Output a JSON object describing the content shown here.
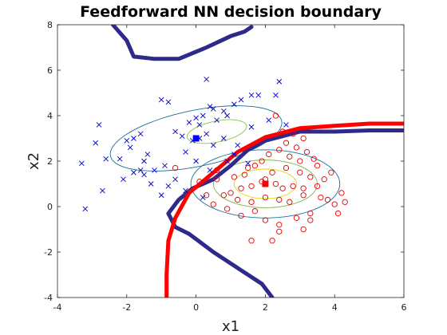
{
  "chart_data": {
    "type": "scatter",
    "title": "Feedforward NN decision boundary",
    "xlabel": "x1",
    "ylabel": "x2",
    "xlim": [
      -4,
      6
    ],
    "ylim": [
      -4,
      8
    ],
    "xticks": [
      "-4",
      "-2",
      "0",
      "2",
      "4",
      "6"
    ],
    "yticks": [
      "-4",
      "-2",
      "0",
      "2",
      "4",
      "6",
      "8"
    ],
    "grid": false,
    "legend": "none",
    "series": [
      {
        "marker": "x",
        "color": "#0000cc",
        "points": [
          [
            0.3,
            5.6
          ],
          [
            1.3,
            4.7
          ],
          [
            2.4,
            5.5
          ],
          [
            1.6,
            4.9
          ],
          [
            1.8,
            4.9
          ],
          [
            2.3,
            4.9
          ],
          [
            1.1,
            4.5
          ],
          [
            0.8,
            4.2
          ],
          [
            0.5,
            4.3
          ],
          [
            0.2,
            4.0
          ],
          [
            0.0,
            3.9
          ],
          [
            0.6,
            3.8
          ],
          [
            -0.2,
            3.7
          ],
          [
            0.1,
            3.6
          ],
          [
            0.4,
            4.4
          ],
          [
            0.9,
            4.0
          ],
          [
            -1.0,
            4.7
          ],
          [
            -0.8,
            4.6
          ],
          [
            1.6,
            3.5
          ],
          [
            2.1,
            3.8
          ],
          [
            2.6,
            3.6
          ],
          [
            0.3,
            3.2
          ],
          [
            0.1,
            3.0
          ],
          [
            -0.1,
            2.9
          ],
          [
            0.5,
            2.7
          ],
          [
            -0.4,
            3.1
          ],
          [
            -0.6,
            3.3
          ],
          [
            0.8,
            3.0
          ],
          [
            1.2,
            2.7
          ],
          [
            1.1,
            2.3
          ],
          [
            -1.6,
            3.2
          ],
          [
            -1.8,
            3.0
          ],
          [
            -1.9,
            2.6
          ],
          [
            -2.0,
            2.9
          ],
          [
            -1.4,
            2.3
          ],
          [
            -1.5,
            2.0
          ],
          [
            -2.2,
            2.1
          ],
          [
            -1.8,
            1.5
          ],
          [
            -1.5,
            1.4
          ],
          [
            -1.6,
            1.6
          ],
          [
            -2.1,
            1.2
          ],
          [
            -2.6,
            2.1
          ],
          [
            -1.2,
            1.6
          ],
          [
            -0.9,
            1.8
          ],
          [
            -1.3,
            1.0
          ],
          [
            -0.8,
            0.9
          ],
          [
            -0.3,
            0.7
          ],
          [
            -0.6,
            1.2
          ],
          [
            -2.9,
            2.8
          ],
          [
            -2.8,
            3.6
          ],
          [
            -2.7,
            0.7
          ],
          [
            -3.3,
            1.9
          ],
          [
            -3.2,
            -0.1
          ],
          [
            -1.0,
            0.5
          ],
          [
            0.2,
            0.4
          ],
          [
            0.4,
            1.6
          ],
          [
            0.9,
            2.0
          ],
          [
            1.5,
            1.9
          ],
          [
            -0.3,
            2.4
          ],
          [
            0.0,
            2.0
          ]
        ]
      },
      {
        "marker": "o",
        "color": "#e00000",
        "points": [
          [
            2.3,
            4.0
          ],
          [
            2.5,
            3.3
          ],
          [
            2.8,
            3.2
          ],
          [
            2.6,
            2.8
          ],
          [
            3.1,
            3.0
          ],
          [
            2.9,
            2.6
          ],
          [
            2.4,
            2.5
          ],
          [
            3.2,
            2.4
          ],
          [
            2.7,
            2.2
          ],
          [
            3.0,
            2.0
          ],
          [
            3.4,
            2.1
          ],
          [
            3.5,
            1.8
          ],
          [
            2.1,
            2.3
          ],
          [
            1.9,
            2.0
          ],
          [
            1.7,
            1.8
          ],
          [
            1.5,
            1.7
          ],
          [
            2.2,
            1.5
          ],
          [
            2.6,
            1.7
          ],
          [
            3.0,
            1.5
          ],
          [
            3.3,
            1.3
          ],
          [
            1.9,
            1.1
          ],
          [
            2.3,
            1.0
          ],
          [
            2.5,
            0.8
          ],
          [
            2.8,
            0.9
          ],
          [
            3.1,
            0.8
          ],
          [
            1.6,
            0.9
          ],
          [
            1.3,
            0.8
          ],
          [
            1.0,
            0.6
          ],
          [
            0.8,
            0.5
          ],
          [
            1.2,
            0.3
          ],
          [
            1.6,
            0.2
          ],
          [
            2.0,
            0.4
          ],
          [
            2.4,
            0.3
          ],
          [
            2.7,
            0.2
          ],
          [
            3.1,
            0.5
          ],
          [
            3.5,
            0.9
          ],
          [
            3.7,
            1.2
          ],
          [
            3.9,
            1.5
          ],
          [
            3.6,
            0.4
          ],
          [
            4.0,
            0.1
          ],
          [
            3.8,
            0.3
          ],
          [
            4.2,
            0.6
          ],
          [
            4.3,
            0.2
          ],
          [
            3.3,
            -0.3
          ],
          [
            2.9,
            -0.5
          ],
          [
            2.4,
            -0.8
          ],
          [
            2.0,
            -0.6
          ],
          [
            1.7,
            -0.2
          ],
          [
            1.3,
            -0.4
          ],
          [
            0.9,
            -0.1
          ],
          [
            0.5,
            0.1
          ],
          [
            0.3,
            0.5
          ],
          [
            0.1,
            1.1
          ],
          [
            0.6,
            1.6
          ],
          [
            1.1,
            1.3
          ],
          [
            1.4,
            1.4
          ],
          [
            2.4,
            -1.1
          ],
          [
            2.2,
            -1.5
          ],
          [
            1.6,
            -1.5
          ],
          [
            3.3,
            -0.6
          ],
          [
            3.1,
            -1.0
          ],
          [
            4.1,
            -0.3
          ],
          [
            -0.6,
            1.7
          ],
          [
            0.6,
            1.2
          ],
          [
            2.0,
            1.2
          ]
        ]
      }
    ],
    "class_means": [
      {
        "x": 0.0,
        "y": 3.0,
        "color": "#0000ff"
      },
      {
        "x": 2.0,
        "y": 1.0,
        "color": "#ff0000"
      }
    ],
    "ellipses": [
      {
        "cx": 0.0,
        "cy": 3.0,
        "rx": 2.6,
        "ry": 1.2,
        "angle_deg": 20,
        "color": "#1a6e9e"
      },
      {
        "cx": 0.6,
        "cy": 3.3,
        "rx": 0.9,
        "ry": 0.45,
        "angle_deg": 20,
        "color": "#8bc34a"
      },
      {
        "cx": 2.0,
        "cy": 1.0,
        "rx": 2.15,
        "ry": 1.5,
        "angle_deg": 0,
        "color": "#1a6e9e"
      },
      {
        "cx": 2.0,
        "cy": 1.0,
        "rx": 1.5,
        "ry": 1.05,
        "angle_deg": 0,
        "color": "#7cb342"
      },
      {
        "cx": 2.0,
        "cy": 1.0,
        "rx": 0.9,
        "ry": 0.65,
        "angle_deg": 0,
        "color": "#e6d800"
      }
    ],
    "boundaries": [
      {
        "color": "#2e2a8a",
        "points": [
          [
            -2.4,
            8.0
          ],
          [
            -2.0,
            7.3
          ],
          [
            -1.8,
            6.6
          ],
          [
            -1.2,
            6.5
          ],
          [
            -0.5,
            6.5
          ],
          [
            0.3,
            7.0
          ],
          [
            1.0,
            7.5
          ],
          [
            1.4,
            7.7
          ],
          [
            1.6,
            7.9
          ]
        ]
      },
      {
        "color": "#2e2a8a",
        "points": [
          [
            6.0,
            3.35
          ],
          [
            5.0,
            3.35
          ],
          [
            4.0,
            3.3
          ],
          [
            3.0,
            3.3
          ],
          [
            2.5,
            3.1
          ],
          [
            2.0,
            2.9
          ],
          [
            1.5,
            2.5
          ],
          [
            1.0,
            1.8
          ],
          [
            0.5,
            1.2
          ],
          [
            -0.1,
            0.8
          ],
          [
            -0.5,
            0.3
          ],
          [
            -0.8,
            -0.3
          ],
          [
            -0.6,
            -0.9
          ],
          [
            -0.2,
            -1.2
          ],
          [
            0.5,
            -2.0
          ],
          [
            1.3,
            -2.8
          ],
          [
            1.9,
            -3.4
          ],
          [
            2.2,
            -4.0
          ]
        ]
      },
      {
        "color": "#ff0000",
        "points": [
          [
            6.0,
            3.65
          ],
          [
            5.0,
            3.65
          ],
          [
            4.0,
            3.55
          ],
          [
            3.0,
            3.45
          ],
          [
            2.0,
            3.05
          ],
          [
            1.2,
            2.4
          ],
          [
            0.5,
            1.5
          ],
          [
            -0.2,
            0.6
          ],
          [
            -0.6,
            -0.5
          ],
          [
            -0.8,
            -1.5
          ],
          [
            -0.85,
            -3.0
          ],
          [
            -0.85,
            -4.0
          ]
        ]
      }
    ]
  }
}
